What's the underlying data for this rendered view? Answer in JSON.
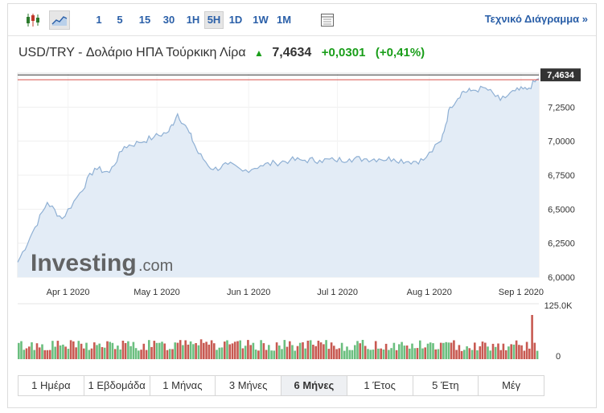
{
  "toolbar": {
    "timeframes": [
      "1",
      "5",
      "15",
      "30",
      "1H",
      "5H",
      "1D",
      "1W",
      "1M"
    ],
    "selected_timeframe": "5H",
    "tech_link": "Τεχνικό Διάγραμμα »"
  },
  "header": {
    "name": "USD/TRY - Δολάριο ΗΠΑ Τούρκικη Λίρα",
    "price": "7,4634",
    "change": "+0,0301",
    "change_pct": "(+0,41%)"
  },
  "watermark": {
    "brand": "Investing",
    "suffix": ".com"
  },
  "colors": {
    "accent": "#2a5fa8",
    "positive": "#1a9e1a",
    "area_fill": "#e3ecf6",
    "area_line": "#8fb0d4",
    "vol_up": "#6bbf7f",
    "vol_down": "#c85a52",
    "ref_line_red": "#d9534f",
    "ref_line_dark": "#333333"
  },
  "chart_data": {
    "type": "area",
    "ylim": [
      6.0,
      7.5
    ],
    "yticks": [
      "7,2500",
      "7,0000",
      "6,7500",
      "6,5000",
      "6,2500",
      "6,0000"
    ],
    "ytick_values": [
      7.25,
      7.0,
      6.75,
      6.5,
      6.25,
      6.0
    ],
    "xticks": [
      "Apr 1 2020",
      "May 1 2020",
      "Jun 1 2020",
      "Jul 1 2020",
      "Aug 1 2020",
      "Sep 1 2020"
    ],
    "current_label": "7,4634",
    "current_value": 7.4634,
    "x_dates": [
      "2020-03-15",
      "2020-03-20",
      "2020-03-25",
      "2020-03-30",
      "2020-04-05",
      "2020-04-10",
      "2020-04-15",
      "2020-04-20",
      "2020-04-25",
      "2020-04-30",
      "2020-05-05",
      "2020-05-08",
      "2020-05-12",
      "2020-05-15",
      "2020-05-20",
      "2020-05-25",
      "2020-05-30",
      "2020-06-05",
      "2020-06-10",
      "2020-06-15",
      "2020-06-20",
      "2020-06-25",
      "2020-06-30",
      "2020-07-05",
      "2020-07-10",
      "2020-07-15",
      "2020-07-20",
      "2020-07-25",
      "2020-07-30",
      "2020-08-05",
      "2020-08-08",
      "2020-08-12",
      "2020-08-15",
      "2020-08-20",
      "2020-08-25",
      "2020-08-30",
      "2020-09-03",
      "2020-09-07"
    ],
    "y_values": [
      6.11,
      6.33,
      6.55,
      6.43,
      6.62,
      6.8,
      6.77,
      6.96,
      6.99,
      7.03,
      7.07,
      7.2,
      7.06,
      6.91,
      6.79,
      6.83,
      6.78,
      6.82,
      6.84,
      6.86,
      6.86,
      6.86,
      6.86,
      6.87,
      6.87,
      6.87,
      6.87,
      6.85,
      6.86,
      7.0,
      7.25,
      7.36,
      7.37,
      7.39,
      7.3,
      7.37,
      7.38,
      7.46
    ],
    "volume_label": "125.0K",
    "volume_zero_label": "0",
    "volume_max": 125
  },
  "periods": [
    "1 Ημέρα",
    "1 Εβδομάδα",
    "1 Μήνας",
    "3 Μήνες",
    "6 Μήνες",
    "1 Έτος",
    "5 Έτη",
    "Μέγ"
  ],
  "selected_period": "6 Μήνες"
}
